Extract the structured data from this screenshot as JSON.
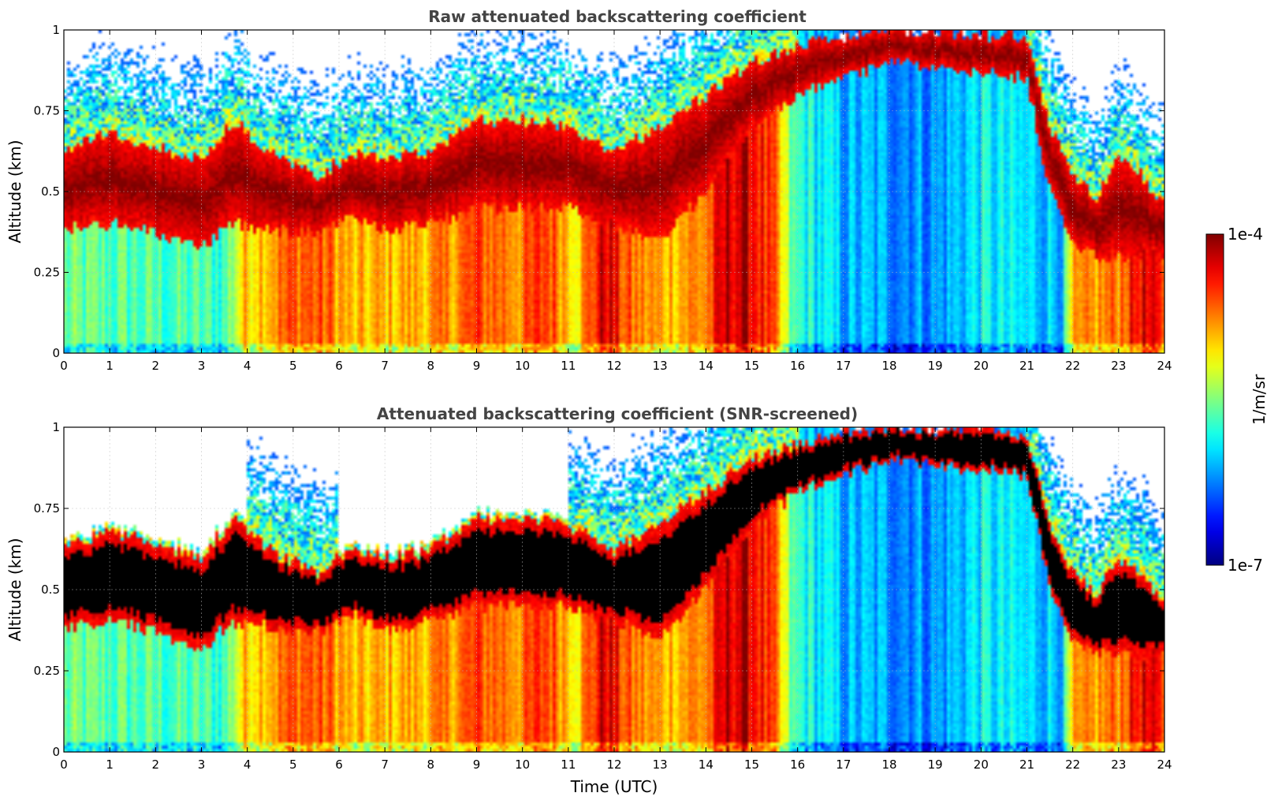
{
  "chart_data": [
    {
      "type": "heatmap",
      "title": "Raw attenuated backscattering coefficient",
      "ylabel": "Altitude (km)",
      "xlabel": "",
      "xlim": [
        0,
        24
      ],
      "ylim": [
        0,
        1
      ],
      "x_ticks": [
        "0",
        "1",
        "2",
        "3",
        "4",
        "5",
        "6",
        "7",
        "8",
        "9",
        "10",
        "11",
        "12",
        "13",
        "14",
        "15",
        "16",
        "17",
        "18",
        "19",
        "20",
        "21",
        "22",
        "23",
        "24"
      ],
      "y_ticks": [
        "0",
        "0.25",
        "0.5",
        "0.75",
        "1"
      ],
      "grid": true,
      "screened": false
    },
    {
      "type": "heatmap",
      "title": "Attenuated backscattering coefficient (SNR-screened)",
      "ylabel": "Altitude (km)",
      "xlabel": "Time (UTC)",
      "xlim": [
        0,
        24
      ],
      "ylim": [
        0,
        1
      ],
      "x_ticks": [
        "0",
        "1",
        "2",
        "3",
        "4",
        "5",
        "6",
        "7",
        "8",
        "9",
        "10",
        "11",
        "12",
        "13",
        "14",
        "15",
        "16",
        "17",
        "18",
        "19",
        "20",
        "21",
        "22",
        "23",
        "24"
      ],
      "y_ticks": [
        "0",
        "0.25",
        "0.5",
        "0.75",
        "1"
      ],
      "grid": true,
      "screened": true
    }
  ],
  "colorbar": {
    "label": "1/m/sr",
    "max_label": "1e-4",
    "min_label": "1e-7",
    "colormap": "jet",
    "scale": "log"
  },
  "field": {
    "layer_top_km": [
      [
        0,
        0.63
      ],
      [
        1,
        0.68
      ],
      [
        2,
        0.64
      ],
      [
        3,
        0.6
      ],
      [
        3.7,
        0.72
      ],
      [
        4.5,
        0.62
      ],
      [
        5.5,
        0.55
      ],
      [
        6.3,
        0.62
      ],
      [
        7,
        0.6
      ],
      [
        8,
        0.62
      ],
      [
        9,
        0.72
      ],
      [
        10,
        0.72
      ],
      [
        11,
        0.7
      ],
      [
        12,
        0.62
      ],
      [
        13,
        0.7
      ],
      [
        14,
        0.8
      ],
      [
        15,
        0.9
      ],
      [
        16,
        0.95
      ],
      [
        17,
        0.98
      ],
      [
        18,
        1.0
      ],
      [
        21,
        0.98
      ],
      [
        21.5,
        0.7
      ],
      [
        22,
        0.55
      ],
      [
        22.5,
        0.48
      ],
      [
        23,
        0.6
      ],
      [
        23.5,
        0.55
      ],
      [
        24,
        0.45
      ]
    ],
    "layer_base_km": [
      [
        0,
        0.38
      ],
      [
        1,
        0.4
      ],
      [
        2,
        0.37
      ],
      [
        3,
        0.32
      ],
      [
        3.7,
        0.4
      ],
      [
        4.5,
        0.38
      ],
      [
        5.5,
        0.37
      ],
      [
        6.3,
        0.42
      ],
      [
        7,
        0.38
      ],
      [
        8,
        0.4
      ],
      [
        9,
        0.45
      ],
      [
        10,
        0.45
      ],
      [
        11,
        0.45
      ],
      [
        12,
        0.4
      ],
      [
        13,
        0.35
      ],
      [
        14,
        0.5
      ],
      [
        15,
        0.7
      ],
      [
        16,
        0.8
      ],
      [
        17,
        0.85
      ],
      [
        18,
        0.9
      ],
      [
        21,
        0.85
      ],
      [
        21.5,
        0.5
      ],
      [
        22,
        0.35
      ],
      [
        22.5,
        0.3
      ],
      [
        23,
        0.3
      ],
      [
        23.5,
        0.3
      ],
      [
        24,
        0.3
      ]
    ],
    "surface_log10": [
      [
        0,
        -5.6
      ],
      [
        3.5,
        -5.7
      ],
      [
        3.9,
        -5.0
      ],
      [
        4.5,
        -4.8
      ],
      [
        5.2,
        -4.6
      ],
      [
        5.8,
        -4.7
      ],
      [
        6.3,
        -5.0
      ],
      [
        7.3,
        -4.9
      ],
      [
        8.2,
        -4.85
      ],
      [
        9,
        -4.6
      ],
      [
        10,
        -4.75
      ],
      [
        10.5,
        -4.5
      ],
      [
        11.2,
        -5.0
      ],
      [
        11.8,
        -4.2
      ],
      [
        12.3,
        -4.7
      ],
      [
        13,
        -4.9
      ],
      [
        14,
        -4.75
      ],
      [
        14.5,
        -4.2
      ],
      [
        15,
        -4.25
      ],
      [
        15.5,
        -4.75
      ],
      [
        15.9,
        -5.7
      ],
      [
        17,
        -6.1
      ],
      [
        19,
        -6.2
      ],
      [
        20,
        -5.9
      ],
      [
        21,
        -6.0
      ],
      [
        21.8,
        -6.0
      ],
      [
        22,
        -5.0
      ],
      [
        23,
        -4.7
      ],
      [
        23.5,
        -4.3
      ],
      [
        24,
        -4.6
      ]
    ]
  }
}
